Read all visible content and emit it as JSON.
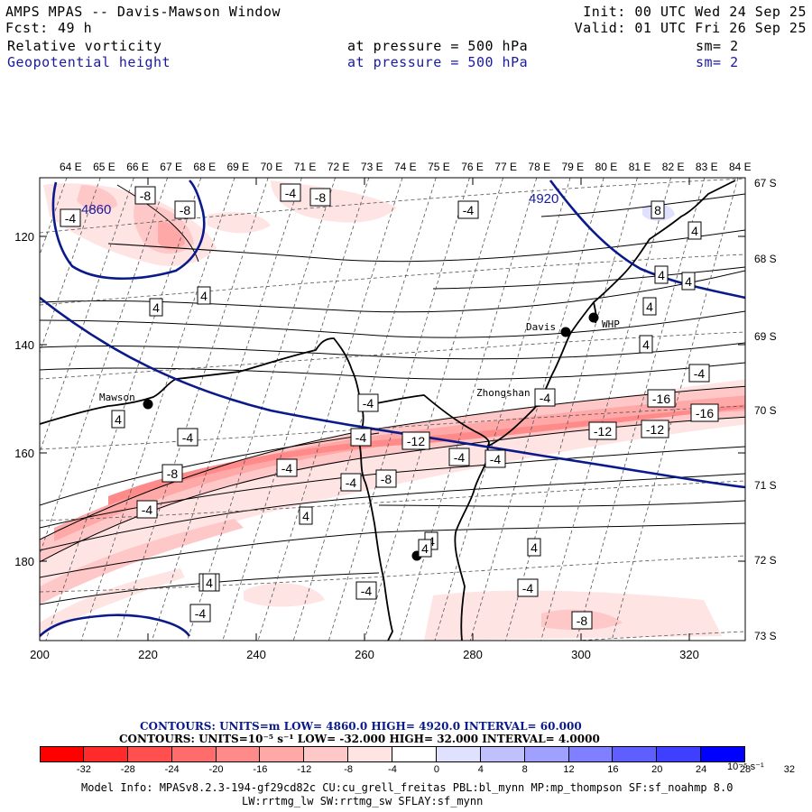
{
  "header": {
    "title": "AMPS MPAS -- Davis-Mawson Window",
    "fcst_label": "Fcst:",
    "fcst_value": "49 h",
    "init": "Init: 00 UTC Wed 24 Sep 25",
    "valid": "Valid: 01 UTC Fri 26 Sep 25",
    "field1": "Relative vorticity",
    "field1_level": "at pressure =  500 hPa",
    "field1_sm": "sm= 2",
    "field2": "Geopotential height",
    "field2_level": "at pressure =  500 hPa",
    "field2_sm": "sm= 2"
  },
  "map": {
    "top_longitudes": [
      "64 E",
      "65 E",
      "66 E",
      "67 E",
      "68 E",
      "69 E",
      "70 E",
      "71 E",
      "72 E",
      "73 E",
      "74 E",
      "75 E",
      "76 E",
      "77 E",
      "78 E",
      "79 E",
      "80 E",
      "81 E",
      "82 E",
      "83 E",
      "84 E"
    ],
    "right_latitudes": [
      "67 S",
      "68 S",
      "69 S",
      "70 S",
      "71 S",
      "72 S",
      "73 S"
    ],
    "x_ticks": [
      "200",
      "220",
      "240",
      "260",
      "280",
      "300",
      "320"
    ],
    "y_ticks": [
      "120",
      "140",
      "160",
      "180"
    ],
    "stations": {
      "davis": "Davis",
      "whp": "WHP",
      "mawson": "Mawson",
      "zhongshan": "Zhongshan"
    },
    "height_labels": [
      "4860",
      "4920"
    ],
    "vorticity_labels": [
      "-8",
      "-4",
      "-8",
      "-4",
      "-8",
      "-4",
      "8",
      "4",
      "4",
      "4",
      "4",
      "4",
      "4",
      "4",
      "-4",
      "-4",
      "-16",
      "-4",
      "-16",
      "-12",
      "-4",
      "-4",
      "-12",
      "-12",
      "-8",
      "-4",
      "-4",
      "-4",
      "-4",
      "-8",
      "-4",
      "4",
      "4",
      "4",
      "-4",
      "-4",
      "-8",
      "4",
      "-4",
      "-8",
      "4",
      "4",
      "4",
      "4",
      "4",
      "4",
      "-4"
    ]
  },
  "footer": {
    "contours1": "CONTOURS:  UNITS=m  LOW=  4860.0       HIGH=  4920.0       INTERVAL=   60.000",
    "contours2": "CONTOURS:  UNITS=10⁻⁵ s⁻¹  LOW=  -32.000       HIGH=  32.000       INTERVAL=   4.0000",
    "colorbar_labels": [
      "-32",
      "-28",
      "-24",
      "-20",
      "-16",
      "-12",
      "-8",
      "-4",
      "0",
      "4",
      "8",
      "12",
      "16",
      "20",
      "24",
      "28",
      "32"
    ],
    "colorbar_unit": "10⁻⁵ s⁻¹",
    "model_info1": "Model Info: MPASv8.2.3-194-gf29cd82c CU:cu_grell_freitas PBL:bl_mynn MP:mp_thompson SF:sf_noahmp 8.0",
    "model_info2": "LW:rrtmg_lw SW:rrtmg_sw SFLAY:sf_mynn"
  },
  "colors": {
    "vort_neg": [
      "#ff0000",
      "#ff2a2a",
      "#ff4f4f",
      "#ff6c6c",
      "#ff8a8a",
      "#ffa8a8",
      "#ffc8c8",
      "#ffe4e4"
    ],
    "vort_pos": [
      "#ffffff",
      "#e0e0ff",
      "#c0c0ff",
      "#a0a0ff",
      "#7f7fff",
      "#5f5fff",
      "#3f3fff",
      "#0000ff"
    ],
    "height_contour": "#0a1a8a"
  }
}
